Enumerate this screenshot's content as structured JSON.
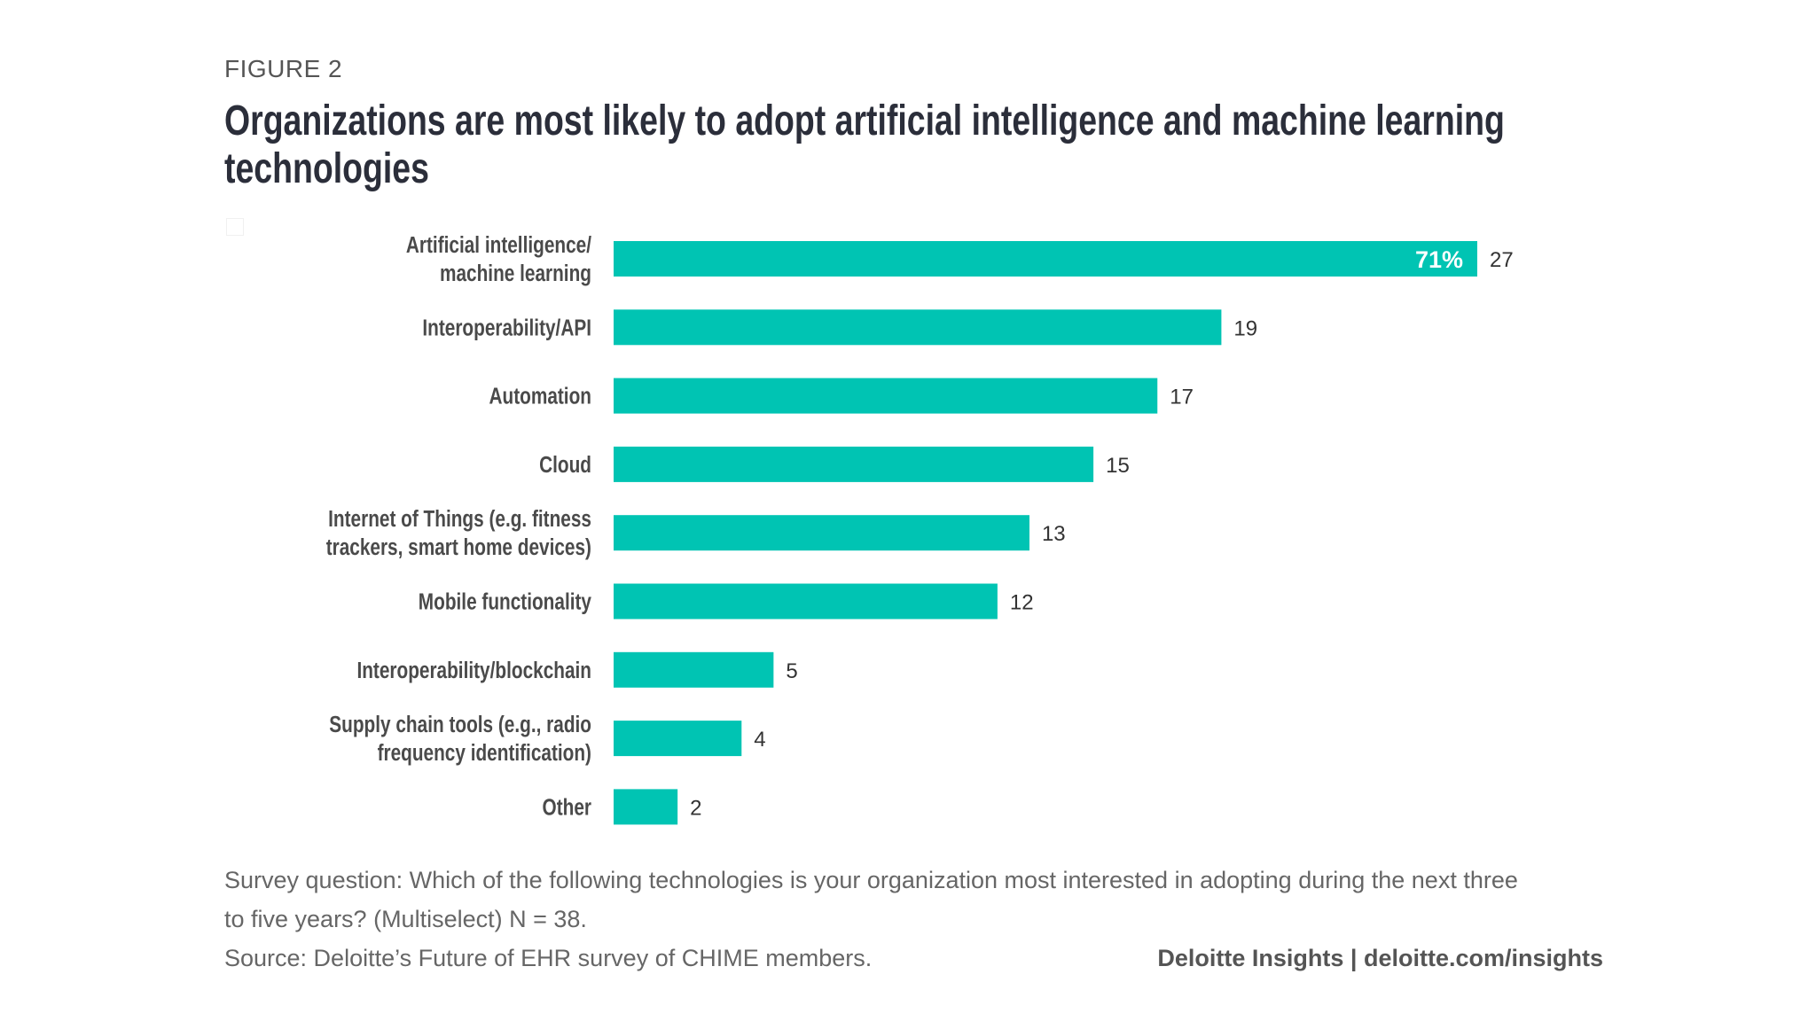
{
  "figure_label": "FIGURE 2",
  "title_line1": "Organizations are most likely to adopt artificial intelligence and machine learning",
  "title_line2": "technologies",
  "chart_data": {
    "type": "bar",
    "orientation": "horizontal",
    "categories": [
      [
        "Artificial intelligence/",
        "machine learning"
      ],
      [
        "Interoperability/API"
      ],
      [
        "Automation"
      ],
      [
        "Cloud"
      ],
      [
        "Internet of Things (e.g. fitness",
        "trackers, smart home devices)"
      ],
      [
        "Mobile functionality"
      ],
      [
        "Interoperability/blockchain"
      ],
      [
        "Supply chain tools (e.g., radio",
        "frequency identification)"
      ],
      [
        "Other"
      ]
    ],
    "values": [
      27,
      19,
      17,
      15,
      13,
      12,
      5,
      4,
      2
    ],
    "annotations": [
      {
        "index": 0,
        "text": "71%"
      }
    ],
    "bar_color": "#00C4B3",
    "xlim": [
      0,
      27
    ],
    "grid": false
  },
  "footer": {
    "survey_line1": "Survey question: Which of the following technologies is your organization most interested in adopting during the next three",
    "survey_line2": "to five years? (Multiselect) N = 38.",
    "source": "Source: Deloitte’s Future of EHR survey of CHIME members.",
    "brand": "Deloitte Insights | deloitte.com/insights"
  }
}
